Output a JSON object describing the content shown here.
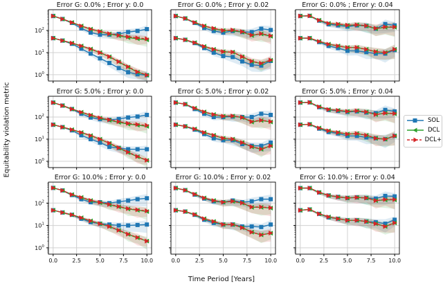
{
  "chart_data": {
    "type": "line",
    "ylabel": "Equitability violation metric",
    "xlabel": "Time Period [Years]",
    "yscale": "log",
    "ylim": [
      0.52,
      870
    ],
    "xlim": [
      -0.5,
      10.5
    ],
    "xticks": [
      "0.0",
      "2.5",
      "5.0",
      "7.5",
      "10.0"
    ],
    "xtick_values": [
      0,
      2.5,
      5,
      7.5,
      10
    ],
    "yticks": [
      {
        "value": 1,
        "base": "10",
        "exp": "0"
      },
      {
        "value": 10,
        "base": "10",
        "exp": "1"
      },
      {
        "value": 100,
        "base": "10",
        "exp": "2"
      }
    ],
    "grid": true,
    "legend": {
      "placement": "right",
      "entries": [
        "SOL",
        "DCL",
        "DCL+"
      ]
    },
    "colors": {
      "SOL": "#1f77b4",
      "DCL": "#2ca02c",
      "DCL+": "#d62728"
    },
    "x": [
      0,
      1,
      2,
      3,
      4,
      5,
      6,
      7,
      8,
      9,
      10
    ],
    "panels": [
      {
        "title": "Error G: 0.0% ; Error y: 0.0",
        "band_spread": 0.35,
        "upper": {
          "SOL": [
            450,
            330,
            220,
            125,
            80,
            65,
            65,
            70,
            85,
            95,
            115
          ],
          "DCL": [
            450,
            330,
            230,
            160,
            115,
            90,
            70,
            58,
            48,
            42,
            38
          ],
          "DCL+": [
            450,
            330,
            230,
            160,
            115,
            90,
            72,
            60,
            52,
            46,
            42
          ]
        },
        "lower": {
          "SOL": [
            45,
            35,
            25,
            15,
            9,
            5.5,
            3.4,
            2,
            1.3,
            1.05,
            0.95
          ],
          "DCL": [
            45,
            35,
            27,
            20,
            14.5,
            10,
            6.5,
            3.8,
            2.2,
            1.3,
            0.95
          ],
          "DCL+": [
            45,
            35,
            27,
            20,
            14.5,
            10,
            6.6,
            3.9,
            2.3,
            1.35,
            0.97
          ]
        }
      },
      {
        "title": "Error G: 0.0% ; Error y: 0.02",
        "band_spread": 0.4,
        "upper": {
          "SOL": [
            450,
            350,
            220,
            130,
            95,
            80,
            95,
            85,
            85,
            120,
            105
          ],
          "DCL": [
            450,
            350,
            230,
            160,
            120,
            100,
            100,
            85,
            60,
            70,
            55
          ],
          "DCL+": [
            450,
            350,
            230,
            160,
            125,
            100,
            105,
            88,
            62,
            72,
            58
          ]
        },
        "lower": {
          "SOL": [
            45,
            38,
            27,
            16,
            10,
            7,
            6.3,
            4,
            2.8,
            2.6,
            4.2
          ],
          "DCL": [
            45,
            38,
            28,
            19,
            14,
            11,
            10.5,
            6.5,
            4,
            3.2,
            4.5
          ],
          "DCL+": [
            45,
            38,
            28,
            19,
            14,
            11,
            10.5,
            6.6,
            4.1,
            3.3,
            4.6
          ]
        }
      },
      {
        "title": "Error G: 0.0% ; Error y: 0.04",
        "band_spread": 0.45,
        "upper": {
          "SOL": [
            450,
            460,
            280,
            190,
            170,
            150,
            170,
            160,
            120,
            195,
            170
          ],
          "DCL": [
            450,
            460,
            290,
            210,
            190,
            170,
            180,
            160,
            120,
            140,
            140
          ],
          "DCL+": [
            450,
            460,
            290,
            210,
            195,
            175,
            180,
            165,
            125,
            145,
            145
          ]
        },
        "lower": {
          "SOL": [
            45,
            45,
            30,
            20,
            16,
            12,
            12,
            10.5,
            9,
            9,
            13
          ],
          "DCL": [
            45,
            45,
            32,
            24,
            20,
            17,
            17,
            14,
            11,
            10,
            14
          ],
          "DCL+": [
            45,
            45,
            32,
            24,
            20,
            17,
            17,
            14,
            11,
            10,
            14
          ]
        }
      },
      {
        "title": "Error G: 5.0% ; Error y: 0.0",
        "band_spread": 0.35,
        "upper": {
          "SOL": [
            450,
            330,
            230,
            140,
            95,
            80,
            75,
            82,
            95,
            105,
            125
          ],
          "DCL": [
            450,
            330,
            230,
            165,
            120,
            90,
            72,
            58,
            48,
            43,
            38
          ],
          "DCL+": [
            450,
            330,
            230,
            165,
            122,
            92,
            75,
            62,
            52,
            46,
            42
          ]
        },
        "lower": {
          "SOL": [
            45,
            35,
            25,
            15,
            10,
            7,
            4.5,
            4,
            3.5,
            3.5,
            3.5
          ],
          "DCL": [
            45,
            35,
            27,
            20,
            14.5,
            10,
            6.5,
            4,
            2.5,
            1.6,
            1.1
          ],
          "DCL+": [
            45,
            35,
            27,
            20,
            14.5,
            10,
            6.6,
            4.1,
            2.6,
            1.65,
            1.12
          ]
        }
      },
      {
        "title": "Error G: 5.0% ; Error y: 0.02",
        "band_spread": 0.4,
        "upper": {
          "SOL": [
            450,
            380,
            230,
            140,
            100,
            100,
            105,
            100,
            100,
            140,
            125
          ],
          "DCL": [
            450,
            380,
            250,
            170,
            130,
            110,
            110,
            95,
            60,
            70,
            60
          ],
          "DCL+": [
            450,
            380,
            250,
            170,
            130,
            110,
            112,
            97,
            62,
            72,
            62
          ]
        },
        "lower": {
          "SOL": [
            45,
            38,
            27,
            17,
            11,
            9,
            9,
            6,
            5,
            5,
            7
          ],
          "DCL": [
            45,
            38,
            29,
            20,
            15,
            11,
            10,
            7,
            4.5,
            3.5,
            5
          ],
          "DCL+": [
            45,
            38,
            29,
            20,
            15,
            11,
            10,
            7,
            4.6,
            3.6,
            5
          ]
        }
      },
      {
        "title": "Error G: 5.0% ; Error y: 0.04",
        "band_spread": 0.45,
        "upper": {
          "SOL": [
            450,
            460,
            280,
            210,
            190,
            170,
            180,
            160,
            150,
            210,
            180
          ],
          "DCL": [
            450,
            460,
            290,
            220,
            200,
            180,
            190,
            170,
            130,
            150,
            140
          ],
          "DCL+": [
            450,
            460,
            290,
            220,
            200,
            180,
            190,
            170,
            130,
            150,
            145
          ]
        },
        "lower": {
          "SOL": [
            45,
            47,
            30,
            21,
            18,
            14,
            14,
            12,
            11,
            10,
            14
          ],
          "DCL": [
            45,
            47,
            32,
            24,
            20,
            17,
            18,
            15,
            11,
            10,
            14
          ],
          "DCL+": [
            45,
            47,
            32,
            24,
            20,
            17,
            18,
            15,
            11,
            10,
            14
          ]
        }
      },
      {
        "title": "Error G: 10.0% ; Error y: 0.0",
        "band_spread": 0.4,
        "upper": {
          "SOL": [
            480,
            370,
            230,
            150,
            110,
            110,
            100,
            115,
            130,
            150,
            165
          ],
          "DCL": [
            480,
            370,
            240,
            180,
            130,
            105,
            85,
            68,
            55,
            48,
            42
          ],
          "DCL+": [
            480,
            370,
            240,
            180,
            132,
            108,
            88,
            70,
            57,
            50,
            45
          ]
        },
        "lower": {
          "SOL": [
            48,
            38,
            30,
            20,
            14,
            12,
            11,
            10,
            10,
            10.5,
            11
          ],
          "DCL": [
            48,
            38,
            30,
            22,
            16,
            12,
            9,
            6,
            4,
            2.8,
            2
          ],
          "DCL+": [
            48,
            38,
            30,
            22,
            16,
            12,
            9,
            6.1,
            4.1,
            2.9,
            2
          ]
        }
      },
      {
        "title": "Error G: 10.0% ; Error y: 0.02",
        "band_spread": 0.42,
        "upper": {
          "SOL": [
            470,
            380,
            240,
            160,
            120,
            110,
            130,
            110,
            120,
            150,
            150
          ],
          "DCL": [
            470,
            380,
            250,
            170,
            130,
            110,
            120,
            100,
            65,
            65,
            60
          ],
          "DCL+": [
            470,
            380,
            250,
            170,
            130,
            110,
            122,
            102,
            67,
            67,
            62
          ]
        },
        "lower": {
          "SOL": [
            48,
            42,
            30,
            18,
            13,
            11,
            11,
            9,
            9,
            8.5,
            11
          ],
          "DCL": [
            48,
            42,
            31,
            20,
            15,
            11,
            11,
            8,
            5,
            3.8,
            4.5
          ],
          "DCL+": [
            48,
            42,
            31,
            20,
            15,
            11,
            11,
            8,
            5,
            3.8,
            4.6
          ]
        }
      },
      {
        "title": "Error G: 10.0% ; Error y: 0.04",
        "band_spread": 0.45,
        "upper": {
          "SOL": [
            470,
            470,
            300,
            220,
            190,
            170,
            180,
            170,
            160,
            210,
            200
          ],
          "DCL": [
            470,
            470,
            300,
            220,
            190,
            170,
            180,
            170,
            130,
            140,
            140
          ],
          "DCL+": [
            470,
            470,
            300,
            220,
            190,
            170,
            180,
            170,
            130,
            145,
            145
          ]
        },
        "lower": {
          "SOL": [
            48,
            52,
            33,
            23,
            20,
            17,
            17,
            15,
            14,
            12,
            18
          ],
          "DCL": [
            48,
            52,
            33,
            24,
            20,
            17,
            17,
            15,
            12,
            9,
            13
          ],
          "DCL+": [
            48,
            52,
            33,
            24,
            20,
            17,
            17,
            15,
            12,
            9,
            13
          ]
        }
      }
    ]
  }
}
